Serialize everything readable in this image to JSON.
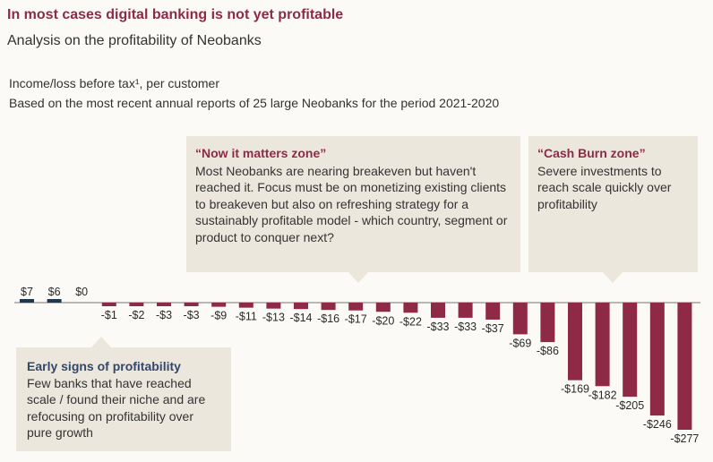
{
  "header": {
    "title": "In most cases digital banking is not yet profitable",
    "subtitle": "Analysis on the profitability of Neobanks",
    "label_line1": "Income/loss before tax¹, per customer",
    "label_line2": "Based on the most recent annual reports of 25 large Neobanks for the period 2021-2020"
  },
  "callouts": {
    "now_zone": {
      "title": "“Now it matters zone”",
      "text": "Most Neobanks are nearing breakeven but haven't reached it. Focus must be on monetizing existing clients to breakeven but also on refreshing strategy for a sustainably profitable model - which country, segment or product to conquer next?"
    },
    "burn_zone": {
      "title": "“Cash Burn zone”",
      "text": "Severe investments to reach scale quickly over profitability"
    },
    "early_zone": {
      "title": "Early signs of profitability",
      "text": "Few banks that have reached scale / found their niche and are refocusing on profitability over pure growth"
    }
  },
  "colors": {
    "title": "#8e2a45",
    "negative_bar": "#8e2a45",
    "positive_bar": "#1e3650",
    "callout_bg": "#ece7dd",
    "early_title": "#31476b"
  },
  "chart_data": {
    "type": "bar",
    "values": [
      7,
      6,
      0,
      -1,
      -2,
      -3,
      -3,
      -9,
      -11,
      -13,
      -14,
      -16,
      -17,
      -20,
      -22,
      -33,
      -33,
      -37,
      -69,
      -86,
      -169,
      -182,
      -205,
      -246,
      -277
    ],
    "labels": [
      "$7",
      "$6",
      "$0",
      "-$1",
      "-$2",
      "-$3",
      "-$3",
      "-$9",
      "-$11",
      "-$13",
      "-$14",
      "-$16",
      "-$17",
      "-$20",
      "-$22",
      "-$33",
      "-$33",
      "-$37",
      "-$69",
      "-$86",
      "-$169",
      "-$182",
      "-$205",
      "-$246",
      "-$277"
    ],
    "ylabel": "Income/loss before tax¹, per customer",
    "grid": false,
    "legend": "none"
  }
}
